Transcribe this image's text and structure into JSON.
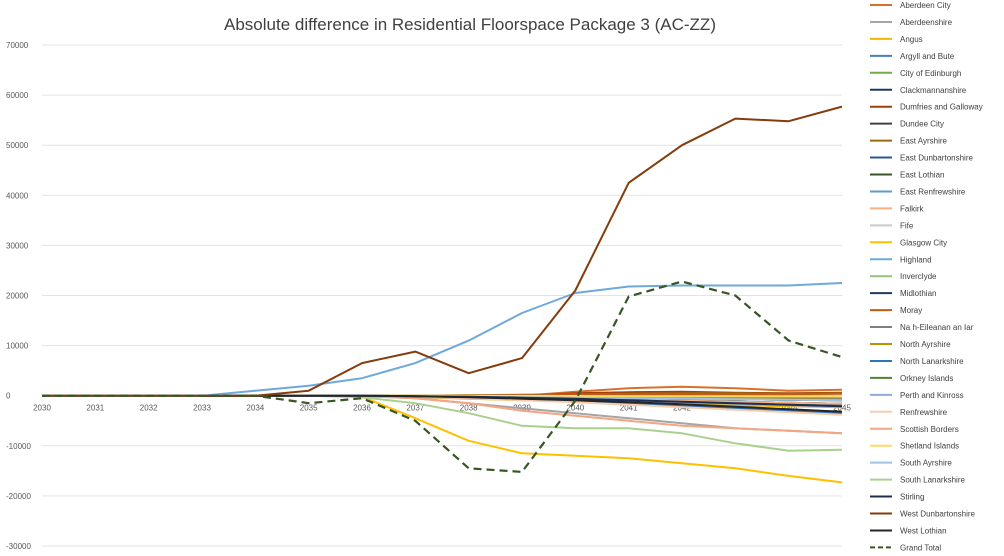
{
  "chart_data": {
    "type": "line",
    "title": "Absolute difference in Residential Floorspace Package 3 (AC-ZZ)",
    "xlabel": "",
    "ylabel": "",
    "ylim": [
      -30000,
      70000
    ],
    "yticks": [
      70000,
      60000,
      50000,
      40000,
      30000,
      20000,
      10000,
      0,
      -10000,
      -20000,
      -30000
    ],
    "x": [
      "2030",
      "2031",
      "2032",
      "2033",
      "2034",
      "2035",
      "2036",
      "2037",
      "2038",
      "2039",
      "2040",
      "2041",
      "2042",
      "2043",
      "2044",
      "2045"
    ],
    "legend_position": "right",
    "grid": true,
    "series": [
      {
        "name": "Aberdeen City",
        "color": "#d9702a",
        "values": [
          0,
          0,
          0,
          0,
          0,
          0,
          0,
          0,
          0,
          0,
          800,
          1500,
          1800,
          1500,
          1000,
          1200
        ]
      },
      {
        "name": "Aberdeenshire",
        "color": "#a5a5a5",
        "values": [
          0,
          0,
          0,
          0,
          0,
          0,
          -100,
          -500,
          -1500,
          -2500,
          -3500,
          -4500,
          -5500,
          -6500,
          -7000,
          -7500
        ]
      },
      {
        "name": "Angus",
        "color": "#f2b701",
        "values": [
          0,
          0,
          0,
          0,
          0,
          0,
          -100,
          -300,
          -600,
          -900,
          -1100,
          -1400,
          -1700,
          -1900,
          -2100,
          -2300
        ]
      },
      {
        "name": "Argyll and Bute",
        "color": "#4a7ebb",
        "values": [
          0,
          0,
          0,
          0,
          0,
          0,
          0,
          -100,
          -200,
          -300,
          -400,
          -500,
          -600,
          -700,
          -800,
          -900
        ]
      },
      {
        "name": "City of Edinburgh",
        "color": "#70ad47",
        "values": [
          0,
          0,
          0,
          0,
          0,
          0,
          0,
          -100,
          -200,
          -300,
          -400,
          -500,
          -600,
          -700,
          -800,
          -900
        ]
      },
      {
        "name": "Clackmannanshire",
        "color": "#1f3864",
        "values": [
          0,
          0,
          0,
          0,
          0,
          0,
          0,
          0,
          -50,
          -100,
          -150,
          -200,
          -250,
          -300,
          -350,
          -400
        ]
      },
      {
        "name": "Dumfries and Galloway",
        "color": "#a0400b",
        "values": [
          0,
          0,
          0,
          0,
          0,
          0,
          0,
          0,
          0,
          0,
          500,
          700,
          800,
          600,
          500,
          600
        ]
      },
      {
        "name": "Dundee City",
        "color": "#404040",
        "values": [
          0,
          0,
          0,
          0,
          0,
          0,
          0,
          -100,
          -200,
          -300,
          -500,
          -700,
          -900,
          -1200,
          -1400,
          -1600
        ]
      },
      {
        "name": "East Ayrshire",
        "color": "#9c6a10",
        "values": [
          0,
          0,
          0,
          0,
          0,
          0,
          0,
          0,
          100,
          200,
          300,
          400,
          500,
          500,
          400,
          500
        ]
      },
      {
        "name": "East Dunbartonshire",
        "color": "#2e5597",
        "values": [
          0,
          0,
          0,
          0,
          0,
          0,
          0,
          -100,
          -300,
          -500,
          -700,
          -900,
          -1100,
          -1300,
          -1500,
          -1700
        ]
      },
      {
        "name": "East Lothian",
        "color": "#375623",
        "values": [
          0,
          0,
          0,
          0,
          0,
          0,
          0,
          -100,
          -200,
          -400,
          -600,
          -800,
          -1000,
          -1200,
          -1400,
          -1600
        ]
      },
      {
        "name": "East Renfrewshire",
        "color": "#5b9bd5",
        "values": [
          0,
          0,
          0,
          0,
          0,
          0,
          0,
          0,
          -100,
          -200,
          -300,
          -400,
          -500,
          -600,
          -700,
          -800
        ]
      },
      {
        "name": "Falkirk",
        "color": "#f4b183",
        "values": [
          0,
          0,
          0,
          0,
          0,
          0,
          0,
          -100,
          -200,
          -400,
          -600,
          -800,
          -1000,
          -1200,
          -1400,
          -1600
        ]
      },
      {
        "name": "Fife",
        "color": "#c9c9c9",
        "values": [
          0,
          0,
          0,
          0,
          0,
          0,
          0,
          -200,
          -500,
          -800,
          -1200,
          -1600,
          -2000,
          -2400,
          -2800,
          -3200
        ]
      },
      {
        "name": "Glasgow City",
        "color": "#ffc000",
        "values": [
          0,
          0,
          0,
          0,
          0,
          0,
          -200,
          -4500,
          -9000,
          -11500,
          -12000,
          -12500,
          -13500,
          -14500,
          -16000,
          -17300
        ]
      },
      {
        "name": "Highland",
        "color": "#6fa8dc",
        "values": [
          0,
          0,
          0,
          0,
          1000,
          2000,
          3500,
          6500,
          11000,
          16500,
          20500,
          21800,
          22000,
          22000,
          22000,
          22500
        ]
      },
      {
        "name": "Inverclyde",
        "color": "#93c47d",
        "values": [
          0,
          0,
          0,
          0,
          0,
          0,
          0,
          -100,
          -200,
          -300,
          -400,
          -500,
          -600,
          -700,
          -800,
          -900
        ]
      },
      {
        "name": "Midlothian",
        "color": "#203864",
        "values": [
          0,
          0,
          0,
          0,
          0,
          0,
          0,
          -100,
          -200,
          -300,
          -400,
          -500,
          -600,
          -700,
          -800,
          -900
        ]
      },
      {
        "name": "Moray",
        "color": "#c55a11",
        "values": [
          0,
          0,
          0,
          0,
          0,
          0,
          0,
          0,
          100,
          100,
          200,
          200,
          300,
          300,
          300,
          400
        ]
      },
      {
        "name": "Na h-Eileanan an Iar",
        "color": "#7f7f7f",
        "values": [
          0,
          0,
          0,
          0,
          0,
          0,
          0,
          0,
          -50,
          -100,
          -150,
          -200,
          -250,
          -300,
          -350,
          -400
        ]
      },
      {
        "name": "North Ayrshire",
        "color": "#bf9000",
        "values": [
          0,
          0,
          0,
          0,
          0,
          0,
          0,
          -50,
          -100,
          -200,
          -300,
          -400,
          -500,
          -600,
          -700,
          -800
        ]
      },
      {
        "name": "North Lanarkshire",
        "color": "#2e75b6",
        "values": [
          0,
          0,
          0,
          0,
          0,
          0,
          0,
          -200,
          -500,
          -800,
          -1100,
          -1500,
          -2000,
          -2500,
          -3000,
          -3500
        ]
      },
      {
        "name": "Orkney Islands",
        "color": "#548235",
        "values": [
          0,
          0,
          0,
          0,
          0,
          0,
          0,
          0,
          -20,
          -40,
          -60,
          -80,
          -100,
          -120,
          -140,
          -160
        ]
      },
      {
        "name": "Perth and Kinross",
        "color": "#8faadc",
        "values": [
          0,
          0,
          0,
          0,
          0,
          0,
          0,
          -100,
          -300,
          -500,
          -700,
          -1000,
          -1300,
          -1600,
          -1900,
          -2200
        ]
      },
      {
        "name": "Renfrewshire",
        "color": "#f8cbad",
        "values": [
          0,
          0,
          0,
          0,
          0,
          0,
          0,
          -200,
          -500,
          -900,
          -1300,
          -1800,
          -2300,
          -2800,
          -3300,
          -3800
        ]
      },
      {
        "name": "Scottish Borders",
        "color": "#f4a582",
        "values": [
          0,
          0,
          0,
          0,
          0,
          0,
          -100,
          -500,
          -1500,
          -3000,
          -4000,
          -5000,
          -6000,
          -6500,
          -7000,
          -7500
        ]
      },
      {
        "name": "Shetland Islands",
        "color": "#ffd966",
        "values": [
          0,
          0,
          0,
          0,
          0,
          0,
          0,
          0,
          -20,
          -40,
          -60,
          -80,
          -100,
          -120,
          -140,
          -160
        ]
      },
      {
        "name": "South Ayrshire",
        "color": "#9dc3e6",
        "values": [
          0,
          0,
          0,
          0,
          0,
          0,
          0,
          -100,
          -200,
          -300,
          -400,
          -500,
          -600,
          -700,
          -800,
          -900
        ]
      },
      {
        "name": "South Lanarkshire",
        "color": "#a9d18e",
        "values": [
          0,
          0,
          0,
          0,
          0,
          0,
          -300,
          -1500,
          -3500,
          -6000,
          -6500,
          -6500,
          -7500,
          -9500,
          -11000,
          -10800
        ]
      },
      {
        "name": "Stirling",
        "color": "#1f2d4f",
        "values": [
          0,
          0,
          0,
          0,
          0,
          0,
          0,
          -100,
          -200,
          -400,
          -600,
          -900,
          -1200,
          -1500,
          -1800,
          -2100
        ]
      },
      {
        "name": "West Dunbartonshire",
        "color": "#843c0c",
        "values": [
          0,
          0,
          0,
          0,
          0,
          1000,
          6500,
          8800,
          4500,
          7500,
          21000,
          42500,
          50000,
          55300,
          54800,
          57700
        ]
      },
      {
        "name": "West Lothian",
        "color": "#262626",
        "values": [
          0,
          0,
          0,
          0,
          0,
          0,
          0,
          -100,
          -300,
          -600,
          -900,
          -1300,
          -1700,
          -2200,
          -2700,
          -3200
        ]
      },
      {
        "name": "Grand Total",
        "color": "#375623",
        "dashed": true,
        "values": [
          0,
          0,
          0,
          0,
          0,
          -1500,
          -500,
          -5000,
          -14500,
          -15200,
          -1000,
          19800,
          22800,
          20000,
          11000,
          7700
        ]
      }
    ]
  }
}
